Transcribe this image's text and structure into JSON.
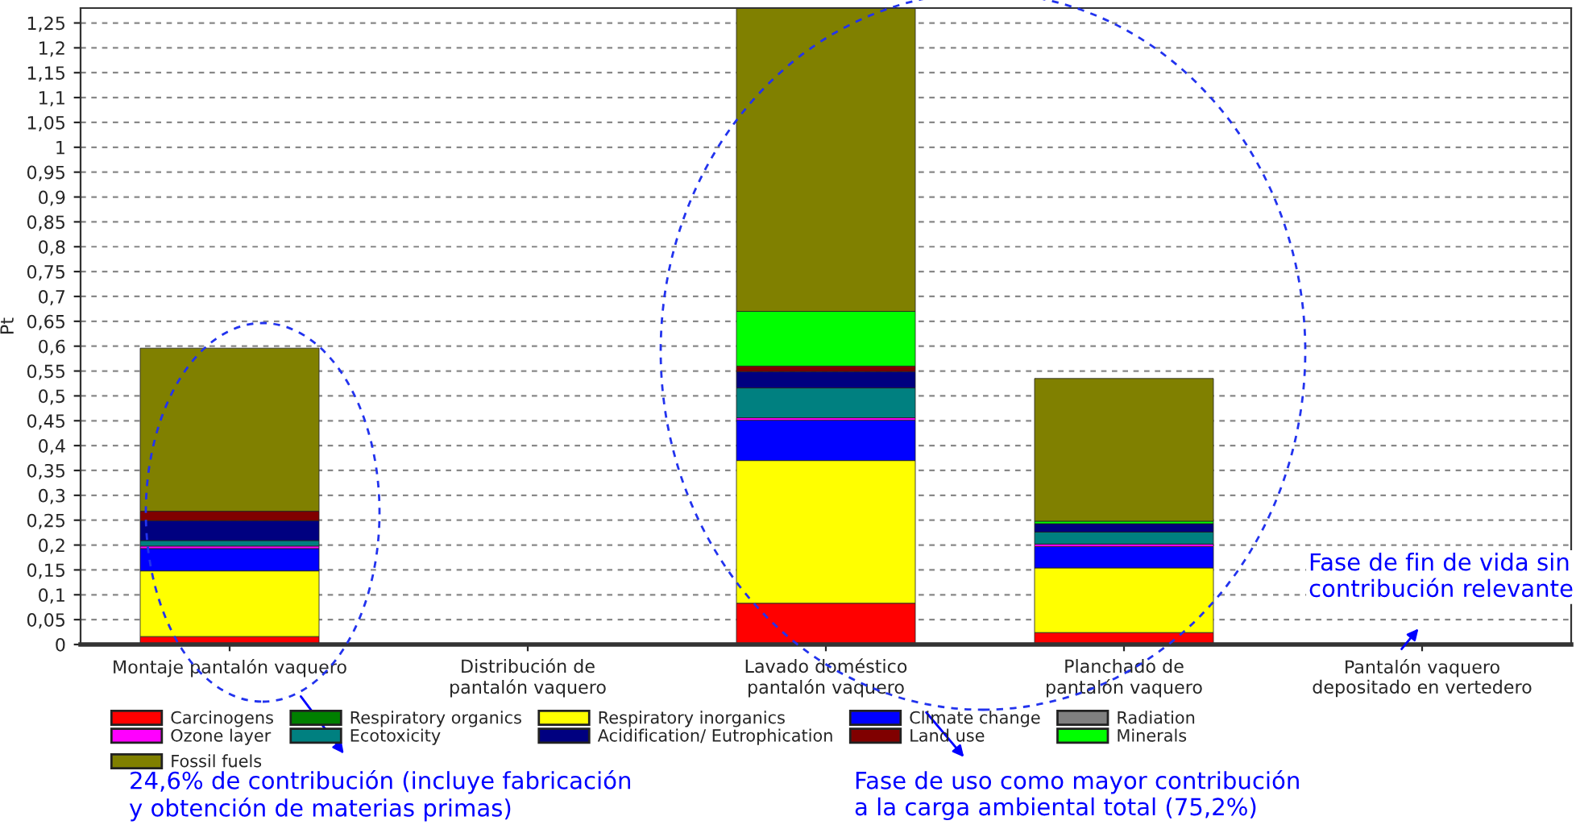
{
  "chart_data": {
    "type": "bar",
    "stacked": true,
    "ylabel": "Pt",
    "categories": [
      "Montaje pantalón vaquero",
      "Distribución de\npantalón vaquero",
      "Lavado doméstico\npantalón vaquero",
      "Planchado de\npantalón vaquero",
      "Pantalón vaquero\ndepositado en vertedero"
    ],
    "series": [
      {
        "name": "Carcinogens",
        "color": "#ff0000",
        "values": [
          0.016,
          0,
          0.083,
          0.024,
          0
        ]
      },
      {
        "name": "Respiratory organics",
        "color": "#008000",
        "values": [
          0,
          0,
          0,
          0,
          0
        ]
      },
      {
        "name": "Respiratory inorganics",
        "color": "#ffff00",
        "values": [
          0.132,
          0,
          0.287,
          0.13,
          0
        ]
      },
      {
        "name": "Climate change",
        "color": "#0000ff",
        "values": [
          0.045,
          0,
          0.081,
          0.043,
          0
        ]
      },
      {
        "name": "Radiation",
        "color": "#808080",
        "values": [
          0,
          0,
          0,
          0,
          0
        ]
      },
      {
        "name": "Ozone layer",
        "color": "#ff00ff",
        "values": [
          0.005,
          0,
          0.005,
          0.005,
          0
        ]
      },
      {
        "name": "Ecotoxicity",
        "color": "#008080",
        "values": [
          0.011,
          0,
          0.06,
          0.024,
          0
        ]
      },
      {
        "name": "Acidification/ Eutrophication",
        "color": "#000080",
        "values": [
          0.04,
          0,
          0.033,
          0.017,
          0
        ]
      },
      {
        "name": "Land use",
        "color": "#800000",
        "values": [
          0.019,
          0,
          0.011,
          0,
          0
        ]
      },
      {
        "name": "Minerals",
        "color": "#00ff00",
        "values": [
          0,
          0,
          0.11,
          0.005,
          0
        ]
      },
      {
        "name": "Fossil fuels",
        "color": "#808000",
        "values": [
          0.328,
          0,
          0.61,
          0.287,
          0
        ]
      }
    ],
    "ylim": [
      0,
      1.28
    ],
    "yticks": [
      0,
      {
        "value": 0.05,
        "label": "0,05"
      },
      {
        "value": 0.1,
        "label": "0,1"
      },
      {
        "value": 0.15,
        "label": "0,15"
      },
      {
        "value": 0.2,
        "label": "0,2"
      },
      {
        "value": 0.25,
        "label": "0,25"
      },
      {
        "value": 0.3,
        "label": "0,3"
      },
      {
        "value": 0.35,
        "label": "0,35"
      },
      {
        "value": 0.4,
        "label": "0,4"
      },
      {
        "value": 0.45,
        "label": "0,45"
      },
      {
        "value": 0.5,
        "label": "0,5"
      },
      {
        "value": 0.55,
        "label": "0,55"
      },
      {
        "value": 0.6,
        "label": "0,6"
      },
      {
        "value": 0.65,
        "label": "0,65"
      },
      {
        "value": 0.7,
        "label": "0,7"
      },
      {
        "value": 0.75,
        "label": "0,75"
      },
      {
        "value": 0.8,
        "label": "0,8"
      },
      {
        "value": 0.85,
        "label": "0,85"
      },
      {
        "value": 0.9,
        "label": "0,9"
      },
      {
        "value": 0.95,
        "label": "0,95"
      },
      1,
      {
        "value": 1.05,
        "label": "1,05"
      },
      {
        "value": 1.1,
        "label": "1,1"
      },
      {
        "value": 1.15,
        "label": "1,15"
      },
      {
        "value": 1.2,
        "label": "1,2"
      },
      {
        "value": 1.25,
        "label": "1,25"
      }
    ],
    "grid": "y",
    "legend": "bottom",
    "annotations": [
      "24,6% de contribución (incluye fabricación\ny obtención de materias primas)",
      "Fase de uso como mayor contribución\na la carga ambiental total (75,2%)",
      "Fase de fin de vida sin\ncontribución relevante"
    ]
  }
}
